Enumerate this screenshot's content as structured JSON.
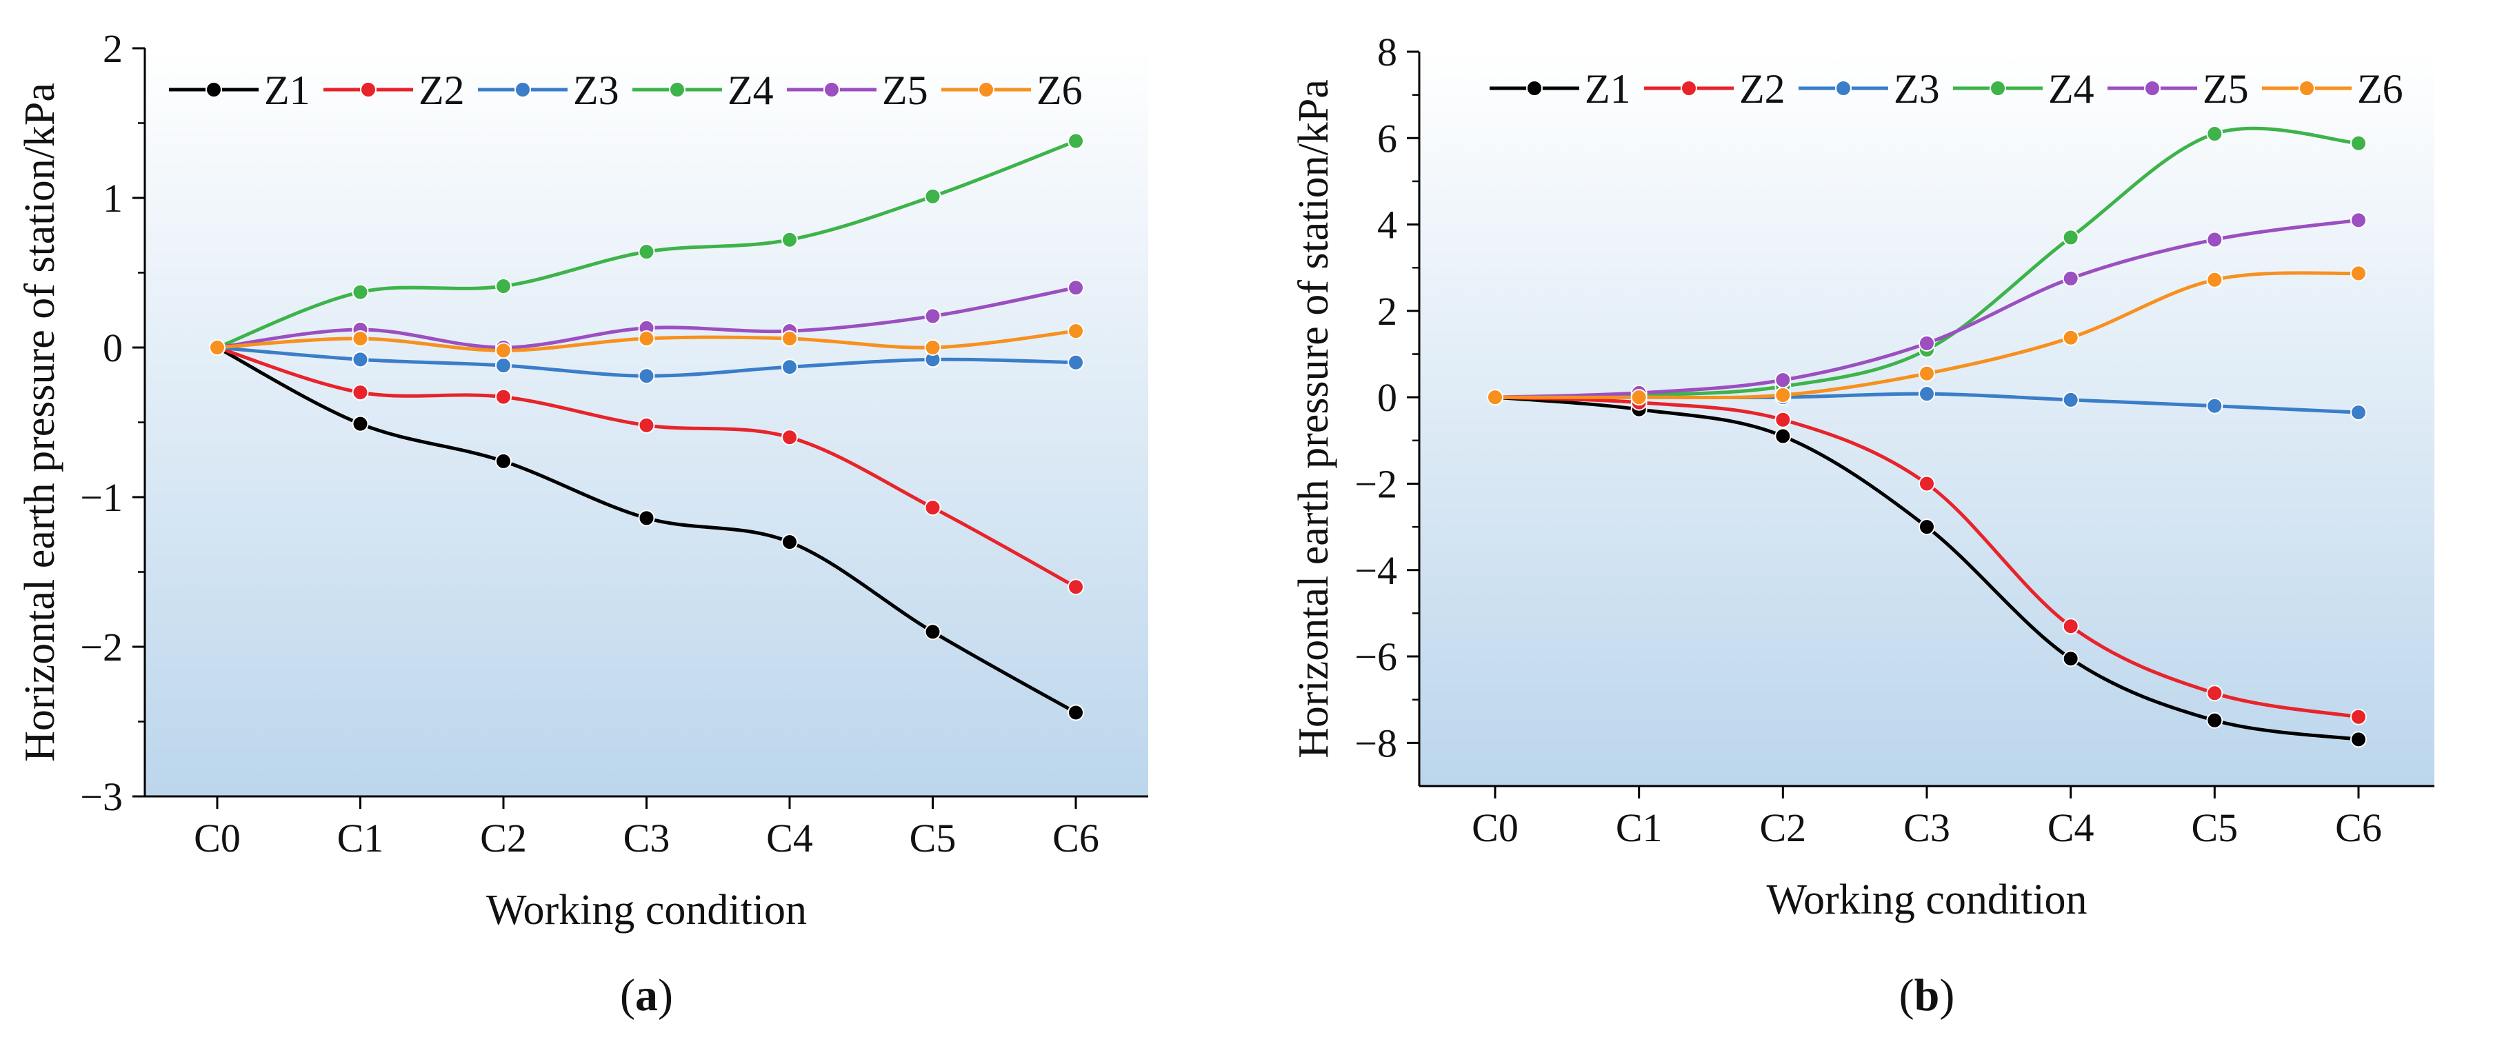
{
  "chart_data": [
    {
      "panel": "(a)",
      "panel_letter": "a",
      "type": "line",
      "title": "",
      "xlabel": "Working condition",
      "ylabel": "Horizontal earth pressure of station/kPa",
      "categories": [
        "C0",
        "C1",
        "C2",
        "C3",
        "C4",
        "C5",
        "C6"
      ],
      "ylim": [
        -3,
        2
      ],
      "yticks": [
        -3,
        -2,
        -1,
        0,
        1,
        2
      ],
      "ytick_labels": [
        "−3",
        "−2",
        "−1",
        "0",
        "1",
        "2"
      ],
      "legend_position": "top",
      "series": [
        {
          "name": "Z1",
          "color": "#000000",
          "values": [
            0,
            -0.51,
            -0.76,
            -1.14,
            -1.3,
            -1.9,
            -2.44
          ]
        },
        {
          "name": "Z2",
          "color": "#e8232a",
          "values": [
            0,
            -0.3,
            -0.33,
            -0.52,
            -0.6,
            -1.07,
            -1.6
          ]
        },
        {
          "name": "Z3",
          "color": "#3a7dc9",
          "values": [
            0,
            -0.08,
            -0.12,
            -0.19,
            -0.13,
            -0.08,
            -0.1
          ]
        },
        {
          "name": "Z4",
          "color": "#3db34a",
          "values": [
            0,
            0.37,
            0.41,
            0.64,
            0.72,
            1.01,
            1.38
          ]
        },
        {
          "name": "Z5",
          "color": "#9b4fc0",
          "values": [
            0,
            0.12,
            0.0,
            0.13,
            0.11,
            0.21,
            0.4
          ]
        },
        {
          "name": "Z6",
          "color": "#f7901e",
          "values": [
            0,
            0.06,
            -0.02,
            0.06,
            0.06,
            0.0,
            0.11
          ]
        }
      ]
    },
    {
      "panel": "(b)",
      "panel_letter": "b",
      "type": "line",
      "title": "",
      "xlabel": "Working condition",
      "ylabel": "Horizontal earth pressure of station/kPa",
      "categories": [
        "C0",
        "C1",
        "C2",
        "C3",
        "C4",
        "C5",
        "C6"
      ],
      "ylim": [
        -9,
        8
      ],
      "yticks": [
        -8,
        -6,
        -4,
        -2,
        0,
        2,
        4,
        6,
        8
      ],
      "ytick_labels": [
        "−8",
        "−6",
        "−4",
        "−2",
        "0",
        "2",
        "4",
        "6",
        "8"
      ],
      "legend_position": "top",
      "series": [
        {
          "name": "Z1",
          "color": "#000000",
          "values": [
            0,
            -0.28,
            -0.9,
            -3.0,
            -6.05,
            -7.48,
            -7.92
          ]
        },
        {
          "name": "Z2",
          "color": "#e8232a",
          "values": [
            0,
            -0.12,
            -0.52,
            -2.0,
            -5.3,
            -6.85,
            -7.4
          ]
        },
        {
          "name": "Z3",
          "color": "#3a7dc9",
          "values": [
            0,
            0.0,
            0.0,
            0.08,
            -0.06,
            -0.2,
            -0.35
          ]
        },
        {
          "name": "Z4",
          "color": "#3db34a",
          "values": [
            0,
            0.05,
            0.25,
            1.1,
            3.7,
            6.1,
            5.88
          ]
        },
        {
          "name": "Z5",
          "color": "#9b4fc0",
          "values": [
            0,
            0.1,
            0.4,
            1.25,
            2.75,
            3.65,
            4.1
          ]
        },
        {
          "name": "Z6",
          "color": "#f7901e",
          "values": [
            0,
            0.0,
            0.05,
            0.55,
            1.38,
            2.72,
            2.87
          ]
        }
      ]
    }
  ]
}
